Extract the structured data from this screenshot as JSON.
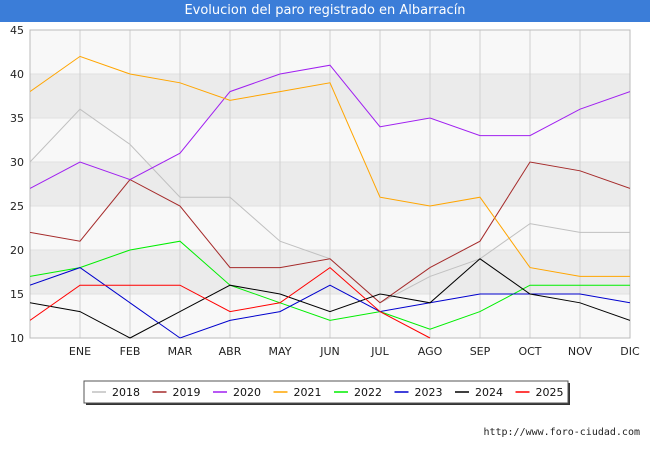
{
  "chart_data": {
    "type": "line",
    "title": "Evolucion del paro registrado en Albarracín",
    "categories": [
      "",
      "ENE",
      "FEB",
      "MAR",
      "ABR",
      "MAY",
      "JUN",
      "JUL",
      "AGO",
      "SEP",
      "OCT",
      "NOV",
      "DIC"
    ],
    "ylim": [
      10,
      45
    ],
    "yticks": [
      10,
      15,
      20,
      25,
      30,
      35,
      40,
      45
    ],
    "grid": true,
    "legend_position": "bottom",
    "series": [
      {
        "name": "2018",
        "color": "#c0c0c0",
        "values": [
          30,
          36,
          32,
          26,
          26,
          21,
          19,
          14,
          17,
          19,
          23,
          22,
          22
        ]
      },
      {
        "name": "2019",
        "color": "#a52a2a",
        "values": [
          22,
          21,
          28,
          25,
          18,
          18,
          19,
          14,
          18,
          21,
          30,
          29,
          27
        ]
      },
      {
        "name": "2020",
        "color": "#a020f0",
        "values": [
          27,
          30,
          28,
          31,
          38,
          40,
          41,
          34,
          35,
          33,
          33,
          36,
          38
        ]
      },
      {
        "name": "2021",
        "color": "#ffa500",
        "values": [
          38,
          42,
          40,
          39,
          37,
          38,
          39,
          26,
          25,
          26,
          18,
          17,
          17
        ]
      },
      {
        "name": "2022",
        "color": "#00ee00",
        "values": [
          17,
          18,
          20,
          21,
          16,
          14,
          12,
          13,
          11,
          13,
          16,
          16,
          16
        ]
      },
      {
        "name": "2023",
        "color": "#0000cd",
        "values": [
          16,
          18,
          14,
          10,
          12,
          13,
          16,
          13,
          14,
          15,
          15,
          15,
          14
        ]
      },
      {
        "name": "2024",
        "color": "#000000",
        "values": [
          14,
          13,
          10,
          13,
          16,
          15,
          13,
          15,
          14,
          19,
          15,
          14,
          12
        ]
      },
      {
        "name": "2025",
        "color": "#ff0000",
        "values": [
          12,
          16,
          16,
          16,
          13,
          14,
          18,
          13,
          10,
          null,
          null,
          null,
          null
        ]
      }
    ]
  },
  "footer": "http://www.foro-ciudad.com"
}
